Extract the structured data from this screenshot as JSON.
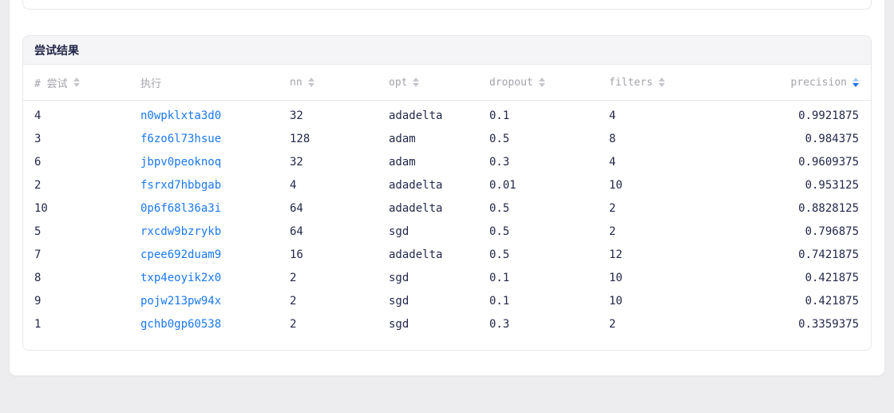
{
  "page": {
    "background_color": "#ededef",
    "panel_color": "#ffffff"
  },
  "results_card": {
    "title": "尝试结果",
    "columns": [
      {
        "key": "trial",
        "label": "# 尝试",
        "sortable": true,
        "sort_state": "none",
        "align": "left",
        "icon": "sort-icon"
      },
      {
        "key": "execution",
        "label": "执行",
        "sortable": false,
        "align": "left"
      },
      {
        "key": "nn",
        "label": "nn",
        "sortable": true,
        "sort_state": "none",
        "align": "left",
        "icon": "sort-icon"
      },
      {
        "key": "opt",
        "label": "opt",
        "sortable": true,
        "sort_state": "none",
        "align": "left",
        "icon": "sort-icon"
      },
      {
        "key": "dropout",
        "label": "dropout",
        "sortable": true,
        "sort_state": "none",
        "align": "left",
        "icon": "sort-icon"
      },
      {
        "key": "filters",
        "label": "filters",
        "sortable": true,
        "sort_state": "none",
        "align": "left",
        "icon": "sort-icon"
      },
      {
        "key": "precision",
        "label": "precision",
        "sortable": true,
        "sort_state": "desc",
        "align": "right",
        "icon": "sort-icon"
      }
    ],
    "rows": [
      {
        "trial": "4",
        "execution": "n0wpklxta3d0",
        "nn": "32",
        "opt": "adadelta",
        "dropout": "0.1",
        "filters": "4",
        "precision": "0.9921875"
      },
      {
        "trial": "3",
        "execution": "f6zo6l73hsue",
        "nn": "128",
        "opt": "adam",
        "dropout": "0.5",
        "filters": "8",
        "precision": "0.984375"
      },
      {
        "trial": "6",
        "execution": "jbpv0peoknoq",
        "nn": "32",
        "opt": "adam",
        "dropout": "0.3",
        "filters": "4",
        "precision": "0.9609375"
      },
      {
        "trial": "2",
        "execution": "fsrxd7hbbgab",
        "nn": "4",
        "opt": "adadelta",
        "dropout": "0.01",
        "filters": "10",
        "precision": "0.953125"
      },
      {
        "trial": "10",
        "execution": "0p6f68l36a3i",
        "nn": "64",
        "opt": "adadelta",
        "dropout": "0.5",
        "filters": "2",
        "precision": "0.8828125"
      },
      {
        "trial": "5",
        "execution": "rxcdw9bzrykb",
        "nn": "64",
        "opt": "sgd",
        "dropout": "0.5",
        "filters": "2",
        "precision": "0.796875"
      },
      {
        "trial": "7",
        "execution": "cpee692duam9",
        "nn": "16",
        "opt": "adadelta",
        "dropout": "0.5",
        "filters": "12",
        "precision": "0.7421875"
      },
      {
        "trial": "8",
        "execution": "txp4eoyik2x0",
        "nn": "2",
        "opt": "sgd",
        "dropout": "0.1",
        "filters": "10",
        "precision": "0.421875"
      },
      {
        "trial": "9",
        "execution": "pojw213pw94x",
        "nn": "2",
        "opt": "sgd",
        "dropout": "0.1",
        "filters": "10",
        "precision": "0.421875"
      },
      {
        "trial": "1",
        "execution": "gchb0gp60538",
        "nn": "2",
        "opt": "sgd",
        "dropout": "0.3",
        "filters": "2",
        "precision": "0.3359375"
      }
    ],
    "colors": {
      "link": "#1a78f2",
      "sort_icon_inactive": "#c7c7cd",
      "sort_icon_active_up": "#a9c9f8",
      "sort_icon_active_down": "#1c6ef2",
      "header_strip_bg": "#f5f5f7",
      "header_text": "#a3a3ab",
      "body_text": "#23284a",
      "card_border": "#e8e8ec"
    }
  }
}
